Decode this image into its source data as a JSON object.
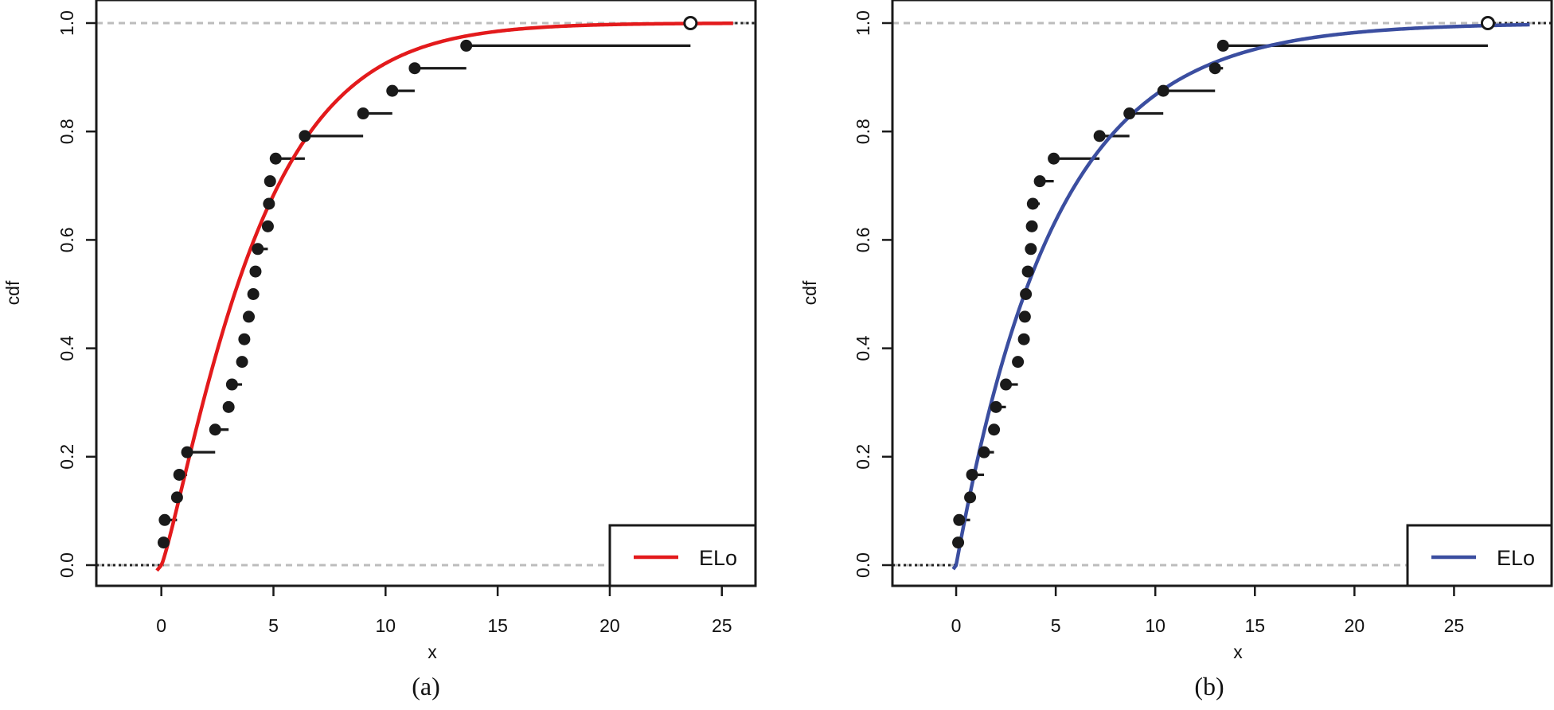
{
  "chart_data": [
    {
      "type": "line",
      "caption": "(a)",
      "xlabel": "x",
      "ylabel": "cdf",
      "xlim": [
        -2.9,
        26.5
      ],
      "ylim": [
        -0.04,
        1.04
      ],
      "xticks": [
        0,
        5,
        10,
        15,
        20,
        25
      ],
      "yticks": [
        0.0,
        0.2,
        0.4,
        0.6,
        0.8,
        1.0
      ],
      "xtick_labels": [
        "0",
        "5",
        "10",
        "15",
        "20",
        "25"
      ],
      "ytick_labels": [
        "0.0",
        "0.2",
        "0.4",
        "0.6",
        "0.8",
        "1.0"
      ],
      "empirical_x": [
        0.1,
        0.15,
        0.7,
        0.8,
        1.15,
        2.4,
        3.0,
        3.15,
        3.6,
        3.7,
        3.9,
        4.1,
        4.2,
        4.3,
        4.75,
        4.8,
        4.85,
        5.1,
        6.4,
        9.0,
        10.3,
        11.3,
        13.6,
        23.6
      ],
      "empirical_y": [
        0.0417,
        0.0833,
        0.125,
        0.1667,
        0.2083,
        0.25,
        0.2917,
        0.3333,
        0.375,
        0.4167,
        0.4583,
        0.5,
        0.5417,
        0.5833,
        0.625,
        0.6667,
        0.7083,
        0.75,
        0.7917,
        0.8333,
        0.875,
        0.9167,
        0.9583,
        1.0
      ],
      "fitted_curve": {
        "name": "ELo",
        "color": "#e31a1c",
        "x_start": -0.2,
        "x_end": 25.5,
        "scale": 4.45,
        "shape": 1.18
      },
      "legend": {
        "position": "bottom-right",
        "entries": [
          {
            "label": "ELo",
            "color": "#e31a1c"
          }
        ]
      }
    },
    {
      "type": "line",
      "caption": "(b)",
      "xlabel": "x",
      "ylabel": "cdf",
      "xlim": [
        -3.2,
        29.9
      ],
      "ylim": [
        -0.04,
        1.04
      ],
      "xticks": [
        0,
        5,
        10,
        15,
        20,
        25
      ],
      "yticks": [
        0.0,
        0.2,
        0.4,
        0.6,
        0.8,
        1.0
      ],
      "xtick_labels": [
        "0",
        "5",
        "10",
        "15",
        "20",
        "25"
      ],
      "ytick_labels": [
        "0.0",
        "0.2",
        "0.4",
        "0.6",
        "0.8",
        "1.0"
      ],
      "empirical_x": [
        0.1,
        0.15,
        0.7,
        0.8,
        1.4,
        1.9,
        2.0,
        2.5,
        3.1,
        3.4,
        3.45,
        3.5,
        3.6,
        3.75,
        3.8,
        3.85,
        4.2,
        4.9,
        7.2,
        8.7,
        10.4,
        13.0,
        13.4,
        26.7
      ],
      "empirical_y": [
        0.0417,
        0.0833,
        0.125,
        0.1667,
        0.2083,
        0.25,
        0.2917,
        0.3333,
        0.375,
        0.4167,
        0.4583,
        0.5,
        0.5417,
        0.5833,
        0.625,
        0.6667,
        0.7083,
        0.75,
        0.7917,
        0.8333,
        0.875,
        0.9167,
        0.9583,
        1.0
      ],
      "fitted_curve": {
        "name": "ELo",
        "color": "#3b4ea0",
        "x_start": -0.15,
        "x_end": 28.8,
        "scale": 4.95,
        "shape": 1.0
      },
      "legend": {
        "position": "bottom-right",
        "entries": [
          {
            "label": "ELo",
            "color": "#3b4ea0"
          }
        ]
      }
    }
  ]
}
